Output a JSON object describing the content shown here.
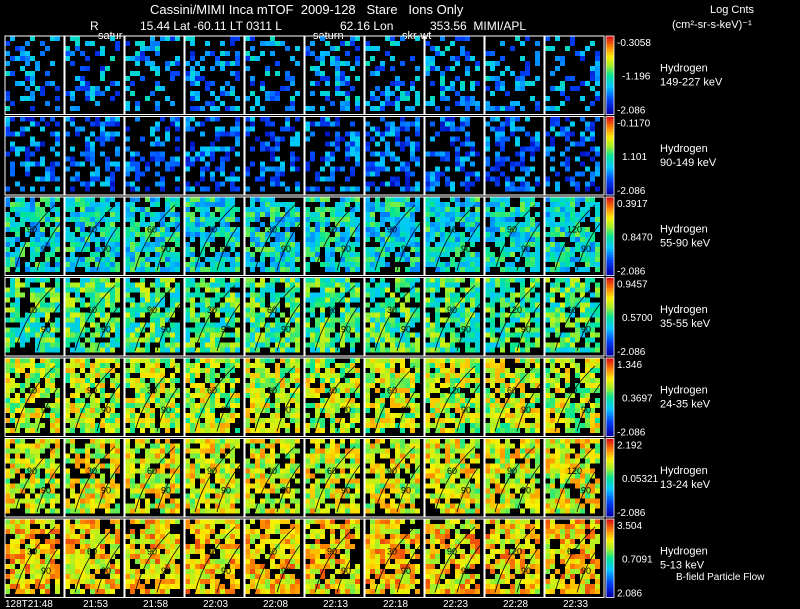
{
  "header": {
    "line1": "Cassini/MIMI Inca mTOF  2009-128   Stare   Ions Only",
    "line2_left": "R",
    "line2_lat": "15.44 Lat -60.11 LT 0311 L",
    "line2_lon": "62.16 Lon",
    "line2_right": "353.56  MIMI/APL",
    "label_saturn_1": "satur",
    "label_saturn_2": "saturn",
    "label_skrwt": "skr-wt",
    "units_title": "Log Cnts",
    "units_expr": "(cm²-sr-s-keV)⁻¹"
  },
  "footer": {
    "bfield_label": "B-field Particle Flow"
  },
  "chart_data": {
    "type": "heatmap",
    "title": "Cassini/MIMI Inca mTOF  2009-128   Stare   Ions Only",
    "x_ticks": [
      "128T21:48",
      "21:53",
      "21:58",
      "22:03",
      "22:08",
      "22:13",
      "22:18",
      "22:23",
      "22:28",
      "22:33"
    ],
    "rows": [
      {
        "species": "Hydrogen",
        "energy": "149-227 keV",
        "max": "-0.3058",
        "mid": "-1.196",
        "min": "-2.086",
        "level": 0.28
      },
      {
        "species": "Hydrogen",
        "energy": "90-149 keV",
        "max": "-0.1170",
        "mid": "1.101",
        "min": "-2.086",
        "level": 0.22
      },
      {
        "species": "Hydrogen",
        "energy": "55-90 keV",
        "max": "0.3917",
        "mid": "0.8470",
        "min": "-2.086",
        "level": 0.42
      },
      {
        "species": "Hydrogen",
        "energy": "35-55 keV",
        "max": "0.9457",
        "mid": "0.5700",
        "min": "-2.086",
        "level": 0.52
      },
      {
        "species": "Hydrogen",
        "energy": "24-35 keV",
        "max": "1.346",
        "mid": "0.3697",
        "min": "-2.086",
        "level": 0.66
      },
      {
        "species": "Hydrogen",
        "energy": "13-24 keV",
        "max": "2.192",
        "mid": "0.05321",
        "min": "-2.086",
        "level": 0.7
      },
      {
        "species": "Hydrogen",
        "energy": "5-13 keV",
        "max": "3.504",
        "mid": "0.7091",
        "min": "2.086",
        "level": 0.76
      }
    ],
    "contour_labels": [
      "30",
      "60",
      "90",
      "120"
    ]
  }
}
